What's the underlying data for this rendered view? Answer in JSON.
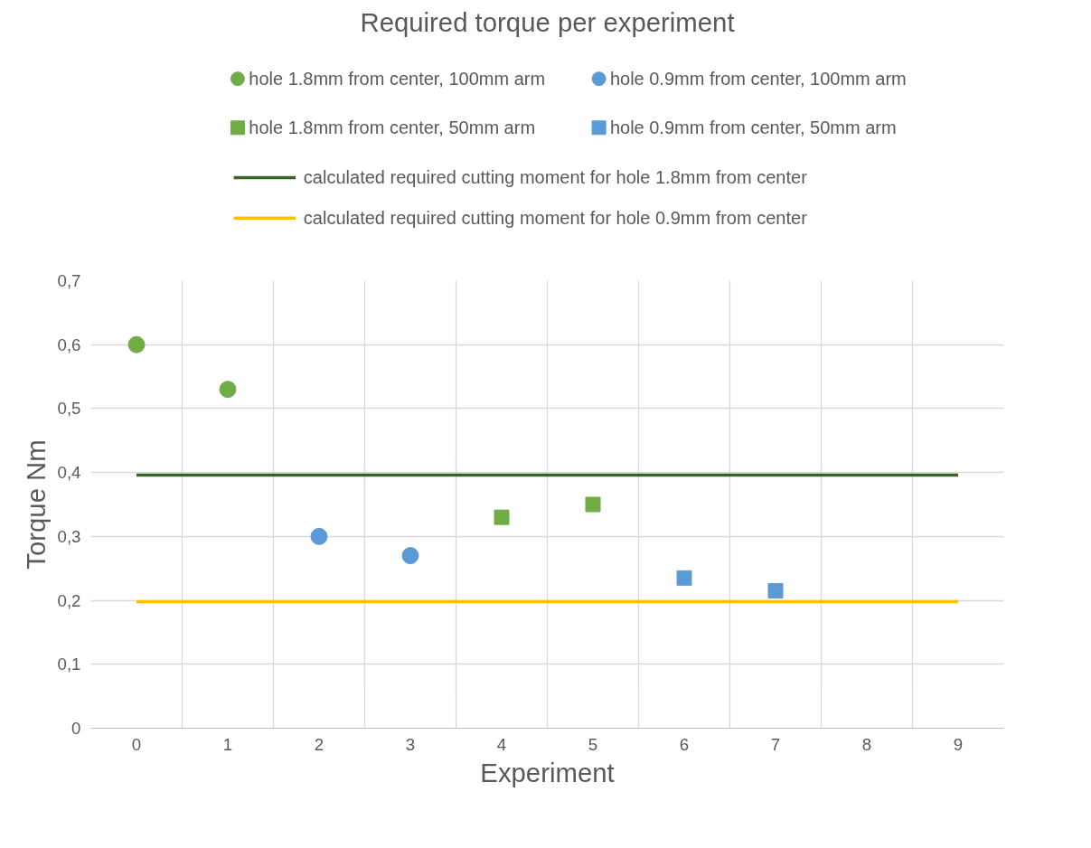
{
  "chart_data": {
    "type": "scatter",
    "title": "Required torque per experiment",
    "xlabel": "Experiment",
    "ylabel": "Torque Nm",
    "categories": [
      "0",
      "1",
      "2",
      "3",
      "4",
      "5",
      "6",
      "7",
      "8",
      "9"
    ],
    "ylim": [
      0,
      0.7
    ],
    "yticks": [
      {
        "value": 0,
        "label": "0"
      },
      {
        "value": 0.1,
        "label": "0,1"
      },
      {
        "value": 0.2,
        "label": "0,2"
      },
      {
        "value": 0.3,
        "label": "0,3"
      },
      {
        "value": 0.4,
        "label": "0,4"
      },
      {
        "value": 0.5,
        "label": "0,5"
      },
      {
        "value": 0.6,
        "label": "0,6"
      },
      {
        "value": 0.7,
        "label": "0,7"
      }
    ],
    "grid": true,
    "legend": "top",
    "series": [
      {
        "name": "hole 1.8mm from center, 100mm arm",
        "marker": "circle",
        "color": "#70ad47",
        "x": [
          "0",
          "1"
        ],
        "values": [
          0.6,
          0.53
        ]
      },
      {
        "name": "hole 0.9mm from center, 100mm arm",
        "marker": "circle",
        "color": "#5b9bd5",
        "x": [
          "2",
          "3"
        ],
        "values": [
          0.3,
          0.27
        ]
      },
      {
        "name": "hole 1.8mm from center, 50mm arm",
        "marker": "square",
        "color": "#70ad47",
        "x": [
          "4",
          "5"
        ],
        "values": [
          0.33,
          0.35
        ]
      },
      {
        "name": "hole 0.9mm from center, 50mm arm",
        "marker": "square",
        "color": "#5b9bd5",
        "x": [
          "6",
          "7"
        ],
        "values": [
          0.235,
          0.215
        ]
      },
      {
        "name": "calculated required cutting moment for hole 1.8mm from center",
        "type": "line",
        "marker": "none",
        "color": "#3b6325",
        "values": [
          0.396,
          0.396,
          0.396,
          0.396,
          0.396,
          0.396,
          0.396,
          0.396,
          0.396,
          0.396
        ]
      },
      {
        "name": "calculated required cutting moment for hole 0.9mm from center",
        "type": "line",
        "marker": "none",
        "color": "#ffc000",
        "values": [
          0.198,
          0.198,
          0.198,
          0.198,
          0.198,
          0.198,
          0.198,
          0.198,
          0.198,
          0.198
        ]
      }
    ]
  }
}
